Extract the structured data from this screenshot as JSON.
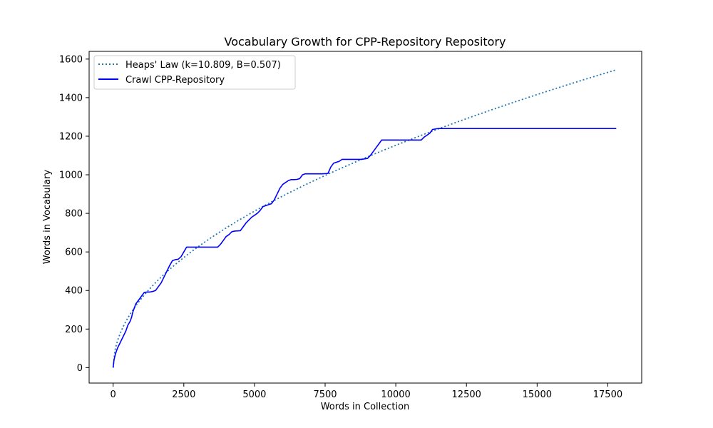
{
  "chart_data": {
    "type": "line",
    "title": "Vocabulary Growth for CPP-Repository Repository",
    "xlabel": "Words in Collection",
    "ylabel": "Words in Vocabulary",
    "xlim": [
      -850,
      18700
    ],
    "ylim": [
      -80,
      1640
    ],
    "xticks": [
      0,
      2500,
      5000,
      7500,
      10000,
      12500,
      15000,
      17500
    ],
    "xtick_labels": [
      "0",
      "2500",
      "5000",
      "7500",
      "10000",
      "12500",
      "15000",
      "17500"
    ],
    "yticks": [
      0,
      200,
      400,
      600,
      800,
      1000,
      1200,
      1400,
      1600
    ],
    "ytick_labels": [
      "0",
      "200",
      "400",
      "600",
      "800",
      "1000",
      "1200",
      "1400",
      "1600"
    ],
    "grid": false,
    "legend_position": "upper left",
    "series": [
      {
        "name": "Heaps' Law (k=10.809, B=0.507)",
        "style": "dotted",
        "color": "#1f77b4",
        "k": 10.809,
        "B": 0.507,
        "x_range": [
          0,
          17800
        ]
      },
      {
        "name": "Crawl CPP-Repository",
        "style": "solid",
        "color": "#0000ff",
        "x": [
          0,
          30,
          80,
          150,
          250,
          350,
          450,
          520,
          600,
          650,
          700,
          750,
          800,
          900,
          1000,
          1100,
          1200,
          1300,
          1400,
          1500,
          1600,
          1700,
          1800,
          1900,
          2000,
          2100,
          2200,
          2300,
          2400,
          2500,
          2600,
          2700,
          2800,
          3000,
          3500,
          3700,
          3800,
          3900,
          4000,
          4100,
          4200,
          4300,
          4500,
          4600,
          4700,
          4800,
          4900,
          5000,
          5100,
          5200,
          5300,
          5400,
          5500,
          5600,
          5700,
          5800,
          5900,
          6000,
          6100,
          6200,
          6300,
          6400,
          6500,
          6600,
          6700,
          6800,
          6900,
          7000,
          7200,
          7400,
          7600,
          7700,
          7800,
          8000,
          8100,
          8200,
          8400,
          8600,
          8800,
          9000,
          9100,
          9200,
          9300,
          9400,
          9500,
          9600,
          9800,
          10000,
          10500,
          10900,
          11000,
          11100,
          11200,
          11300,
          11500,
          12000,
          13000,
          15000,
          17000,
          17800
        ],
        "y": [
          0,
          40,
          70,
          100,
          130,
          160,
          190,
          220,
          240,
          260,
          290,
          310,
          330,
          350,
          370,
          390,
          392,
          392,
          395,
          400,
          420,
          440,
          470,
          500,
          530,
          555,
          560,
          562,
          575,
          600,
          625,
          625,
          625,
          625,
          625,
          625,
          640,
          660,
          680,
          690,
          705,
          708,
          710,
          730,
          750,
          765,
          780,
          790,
          800,
          815,
          835,
          840,
          845,
          850,
          870,
          900,
          930,
          950,
          960,
          970,
          975,
          975,
          976,
          980,
          1000,
          1005,
          1005,
          1005,
          1005,
          1005,
          1007,
          1040,
          1060,
          1070,
          1080,
          1080,
          1080,
          1080,
          1080,
          1085,
          1100,
          1120,
          1140,
          1160,
          1180,
          1180,
          1180,
          1180,
          1180,
          1180,
          1195,
          1205,
          1215,
          1235,
          1240,
          1240,
          1240,
          1240,
          1240,
          1240
        ]
      }
    ]
  }
}
